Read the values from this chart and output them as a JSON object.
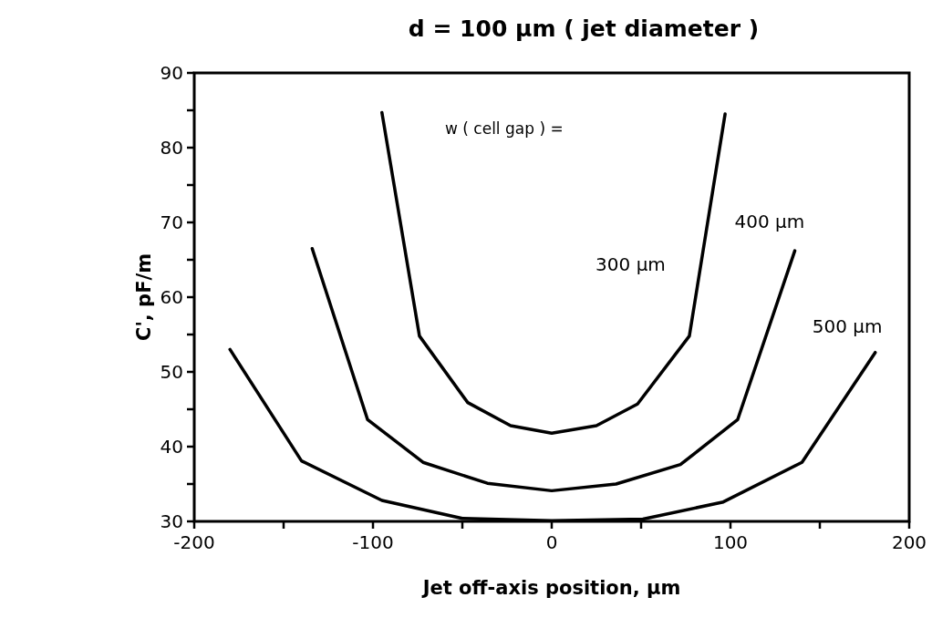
{
  "chart_data": {
    "type": "line",
    "title": "d = 100 µm ( jet diameter )",
    "xlabel": "Jet off-axis position, µm",
    "ylabel": "C', pF/m",
    "annotations": [
      "w ( cell gap ) ="
    ],
    "xlim": [
      -200,
      200
    ],
    "xticks": [
      -200,
      {
        "value": -150,
        "label": null
      },
      -100,
      {
        "value": -50,
        "label": null
      },
      0,
      {
        "value": 50,
        "label": null
      },
      100,
      {
        "value": 150,
        "label": null
      },
      200
    ],
    "ylim": [
      30,
      90
    ],
    "yticks": [
      30,
      {
        "value": 35,
        "label": null
      },
      40,
      {
        "value": 45,
        "label": null
      },
      50,
      {
        "value": 55,
        "label": null
      },
      60,
      {
        "value": 65,
        "label": null
      },
      70,
      {
        "value": 75,
        "label": null
      },
      80,
      {
        "value": 85,
        "label": null
      },
      90
    ],
    "grid": false,
    "marker": "none",
    "line_style": "solid",
    "series": [
      {
        "name": "300 µm",
        "color": "#000000",
        "x": [
          -95,
          -74,
          -47,
          -23,
          0,
          25,
          48,
          77,
          97
        ],
        "values": [
          84.7,
          54.8,
          45.9,
          42.8,
          41.8,
          42.8,
          45.7,
          54.8,
          84.5
        ]
      },
      {
        "name": "400 µm",
        "color": "#000000",
        "x": [
          -134,
          -103,
          -72,
          -36,
          0,
          36,
          72,
          104,
          136
        ],
        "values": [
          66.5,
          43.6,
          37.9,
          35.1,
          34.1,
          35.0,
          37.6,
          43.6,
          66.2
        ]
      },
      {
        "name": "500 µm",
        "color": "#000000",
        "x": [
          -180,
          -140,
          -95,
          -50,
          0,
          51,
          96,
          140,
          181
        ],
        "values": [
          53.0,
          38.1,
          32.8,
          30.4,
          30.1,
          30.3,
          32.6,
          37.9,
          52.6
        ]
      }
    ]
  }
}
